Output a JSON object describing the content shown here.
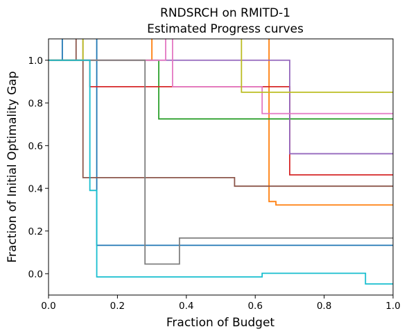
{
  "chart_data": {
    "type": "line",
    "title_line1": "RNDSRCH on RMITD-1",
    "title_line2": "Estimated Progress curves",
    "xlabel": "Fraction of Budget",
    "ylabel": "Fraction of Initial Optimality Gap",
    "xlim": [
      0,
      1
    ],
    "ylim": [
      -0.1,
      1.1
    ],
    "xticks": [
      0.0,
      0.2,
      0.4,
      0.6,
      0.8,
      1.0
    ],
    "xtick_labels": [
      "0.0",
      "0.2",
      "0.4",
      "0.6",
      "0.8",
      "1.0"
    ],
    "yticks": [
      0.0,
      0.2,
      0.4,
      0.6,
      0.8,
      1.0
    ],
    "ytick_labels": [
      "0.0",
      "0.2",
      "0.4",
      "0.6",
      "0.8",
      "1.0"
    ],
    "grid": false,
    "step": "post",
    "series": [
      {
        "color": "#1f77b4",
        "points": [
          [
            0,
            1.0
          ],
          [
            0.04,
            1.0
          ],
          [
            0.04,
            1.23
          ],
          [
            0.14,
            1.23
          ],
          [
            0.14,
            0.133
          ],
          [
            1.0,
            0.133
          ]
        ]
      },
      {
        "color": "#ff7f0e",
        "points": [
          [
            0,
            1.0
          ],
          [
            0.3,
            1.0
          ],
          [
            0.3,
            1.25
          ],
          [
            0.64,
            1.25
          ],
          [
            0.64,
            0.338
          ],
          [
            0.66,
            0.338
          ],
          [
            0.66,
            0.322
          ],
          [
            1.0,
            0.322
          ]
        ]
      },
      {
        "color": "#2ca02c",
        "points": [
          [
            0,
            1.0
          ],
          [
            0.32,
            1.0
          ],
          [
            0.32,
            0.725
          ],
          [
            1.0,
            0.725
          ]
        ]
      },
      {
        "color": "#d62728",
        "points": [
          [
            0,
            1.0
          ],
          [
            0.12,
            1.0
          ],
          [
            0.12,
            0.876
          ],
          [
            0.7,
            0.876
          ],
          [
            0.7,
            0.463
          ],
          [
            1.0,
            0.463
          ]
        ]
      },
      {
        "color": "#9467bd",
        "points": [
          [
            0,
            1.0
          ],
          [
            0.7,
            1.0
          ],
          [
            0.7,
            0.562
          ],
          [
            1.0,
            0.562
          ]
        ]
      },
      {
        "color": "#8c564b",
        "points": [
          [
            0,
            1.0
          ],
          [
            0.08,
            1.0
          ],
          [
            0.08,
            1.25
          ],
          [
            0.1,
            1.25
          ],
          [
            0.1,
            0.45
          ],
          [
            0.54,
            0.45
          ],
          [
            0.54,
            0.41
          ],
          [
            1.0,
            0.41
          ]
        ]
      },
      {
        "color": "#e377c2",
        "points": [
          [
            0,
            1.0
          ],
          [
            0.34,
            1.0
          ],
          [
            0.34,
            1.25
          ],
          [
            0.36,
            1.25
          ],
          [
            0.36,
            0.876
          ],
          [
            0.62,
            0.876
          ],
          [
            0.62,
            0.75
          ],
          [
            1.0,
            0.75
          ]
        ]
      },
      {
        "color": "#7f7f7f",
        "points": [
          [
            0,
            1.0
          ],
          [
            0.28,
            1.0
          ],
          [
            0.28,
            0.045
          ],
          [
            0.38,
            0.045
          ],
          [
            0.38,
            0.167
          ],
          [
            1.0,
            0.167
          ]
        ]
      },
      {
        "color": "#bcbd22",
        "points": [
          [
            0,
            1.0
          ],
          [
            0.1,
            1.0
          ],
          [
            0.1,
            1.25
          ],
          [
            0.56,
            1.25
          ],
          [
            0.56,
            0.85
          ],
          [
            1.0,
            0.85
          ]
        ]
      },
      {
        "color": "#17becf",
        "points": [
          [
            0,
            1.0
          ],
          [
            0.12,
            1.0
          ],
          [
            0.12,
            0.39
          ],
          [
            0.14,
            0.39
          ],
          [
            0.14,
            -0.015
          ],
          [
            0.62,
            -0.015
          ],
          [
            0.62,
            0.002
          ],
          [
            0.92,
            0.002
          ],
          [
            0.92,
            -0.048
          ],
          [
            1.0,
            -0.048
          ]
        ]
      }
    ]
  }
}
